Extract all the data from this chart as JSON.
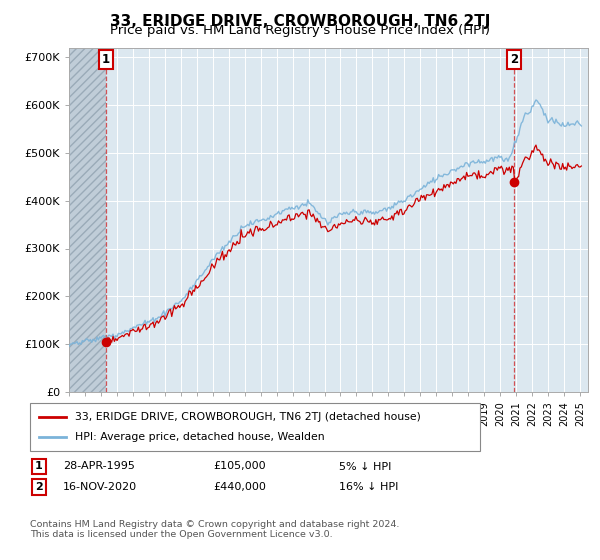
{
  "title": "33, ERIDGE DRIVE, CROWBOROUGH, TN6 2TJ",
  "subtitle": "Price paid vs. HM Land Registry's House Price Index (HPI)",
  "ylim": [
    0,
    720000
  ],
  "yticks": [
    0,
    100000,
    200000,
    300000,
    400000,
    500000,
    600000,
    700000
  ],
  "ytick_labels": [
    "£0",
    "£100K",
    "£200K",
    "£300K",
    "£400K",
    "£500K",
    "£600K",
    "£700K"
  ],
  "xlim_start": 1993.0,
  "xlim_end": 2025.5,
  "hpi_color": "#7bb3d9",
  "price_color": "#cc0000",
  "sale1_date": 1995.32,
  "sale1_price": 105000,
  "sale2_date": 2020.88,
  "sale2_price": 440000,
  "background_plot": "#dce8f0",
  "hatch_end": 1995.32,
  "legend_label1": "33, ERIDGE DRIVE, CROWBOROUGH, TN6 2TJ (detached house)",
  "legend_label2": "HPI: Average price, detached house, Wealden",
  "footer": "Contains HM Land Registry data © Crown copyright and database right 2024.\nThis data is licensed under the Open Government Licence v3.0.",
  "title_fontsize": 11,
  "subtitle_fontsize": 9.5,
  "hpi_discount1": 0.05,
  "hpi_discount2": 0.16
}
